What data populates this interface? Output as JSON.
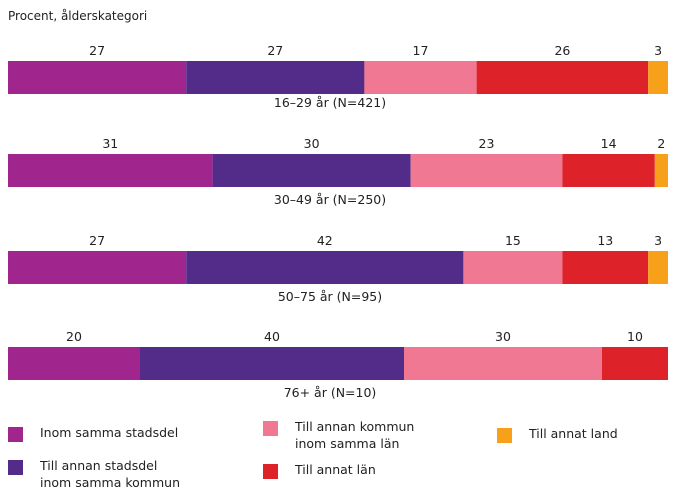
{
  "unit_label": "Procent, ålderskategori",
  "chart_data": {
    "type": "bar",
    "orientation": "horizontal-stacked",
    "xlim": [
      0,
      100
    ],
    "categories": [
      "16–29 år (N=421)",
      "30–49 år (N=250)",
      "50–75 år (N=95)",
      "76+ år (N=10)"
    ],
    "series": [
      {
        "name": "Inom samma stadsdel",
        "color": "#a0268e",
        "values": [
          27,
          31,
          27,
          20
        ]
      },
      {
        "name": "Till annan stadsdel\ninom samma kommun",
        "color": "#532c8a",
        "values": [
          27,
          30,
          42,
          40
        ]
      },
      {
        "name": "Till annan kommun\ninom samma län",
        "color": "#f07892",
        "values": [
          17,
          23,
          15,
          30
        ]
      },
      {
        "name": "Till annat län",
        "color": "#dd2229",
        "values": [
          26,
          14,
          13,
          10
        ]
      },
      {
        "name": "Till annat land",
        "color": "#f7a11a",
        "values": [
          3,
          2,
          3,
          0
        ]
      }
    ],
    "legend_position": "bottom",
    "grid": false
  }
}
